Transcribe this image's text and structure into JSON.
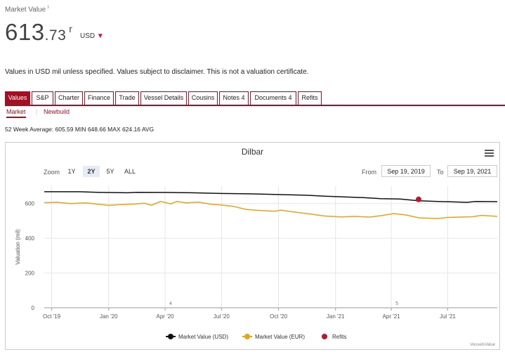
{
  "header": {
    "label": "Market Value",
    "label_sup": "i",
    "value_int": "613",
    "value_dec": ".73",
    "value_suffix": "r",
    "currency": "USD",
    "currency_caret": "▼"
  },
  "disclaimer": "Values in USD mil unless specified. Values subject to disclaimer. This is not a valuation certificate.",
  "tabs": [
    "Values",
    "S&P",
    "Charter",
    "Finance",
    "Trade",
    "Vessel Details",
    "Cousins",
    "Notes 4",
    "Documents 4",
    "Refits"
  ],
  "subtabs": [
    "Market",
    "Newbuild"
  ],
  "week_avg": "52 Week Average: 605.59 MIN 648.66 MAX 624.16 AVG",
  "chart_toolbar": {
    "zoom_label": "Zoom",
    "zoom_options": [
      "1Y",
      "2Y",
      "5Y",
      "ALL"
    ],
    "zoom_selected": "2Y",
    "from_label": "From",
    "from_value": "Sep 19, 2019",
    "to_label": "To",
    "to_value": "Sep 19, 2021"
  },
  "credit": "VesselsValue",
  "colors": {
    "usd": "#111111",
    "eur": "#e8a317",
    "refits": "#c0152f",
    "accent": "#a50f24"
  },
  "chart_data": {
    "type": "line",
    "title": "Dilbar",
    "ylabel": "Valuation (mil)",
    "ylim": [
      0,
      700
    ],
    "yticks": [
      0,
      200,
      400,
      600
    ],
    "x_range": [
      "2019-09-19",
      "2021-09-19"
    ],
    "x_ticks": [
      {
        "date": "2019-10-01",
        "label": "Oct '19"
      },
      {
        "date": "2020-01-01",
        "label": "Jan '20"
      },
      {
        "date": "2020-04-01",
        "label": "Apr '20"
      },
      {
        "date": "2020-07-01",
        "label": "Jul '20"
      },
      {
        "date": "2020-10-01",
        "label": "Oct '20"
      },
      {
        "date": "2021-01-01",
        "label": "Jan '21"
      },
      {
        "date": "2021-04-01",
        "label": "Apr '21"
      },
      {
        "date": "2021-07-01",
        "label": "Jul '21"
      }
    ],
    "annotations": [
      {
        "date": "2020-04-10",
        "label": "4"
      },
      {
        "date": "2021-04-10",
        "label": "5"
      }
    ],
    "grid": true,
    "legend_position": "bottom-center",
    "series": [
      {
        "name": "Market Value (USD)",
        "color": "#111111",
        "points": [
          [
            "2019-09-19",
            668
          ],
          [
            "2019-11-15",
            668
          ],
          [
            "2019-12-15",
            665
          ],
          [
            "2020-02-01",
            662
          ],
          [
            "2020-02-15",
            665
          ],
          [
            "2020-04-01",
            664
          ],
          [
            "2020-05-15",
            662
          ],
          [
            "2020-07-01",
            658
          ],
          [
            "2020-08-15",
            656
          ],
          [
            "2020-10-01",
            652
          ],
          [
            "2020-11-15",
            648
          ],
          [
            "2020-12-15",
            642
          ],
          [
            "2021-01-15",
            638
          ],
          [
            "2021-02-15",
            634
          ],
          [
            "2021-03-15",
            628
          ],
          [
            "2021-04-15",
            626
          ],
          [
            "2021-05-15",
            616
          ],
          [
            "2021-06-15",
            612
          ],
          [
            "2021-07-15",
            609
          ],
          [
            "2021-08-01",
            607
          ],
          [
            "2021-08-15",
            612
          ],
          [
            "2021-09-19",
            611
          ]
        ]
      },
      {
        "name": "Market Value (EUR)",
        "color": "#e8a317",
        "points": [
          [
            "2019-09-19",
            605
          ],
          [
            "2019-10-10",
            607
          ],
          [
            "2019-11-01",
            600
          ],
          [
            "2019-11-25",
            604
          ],
          [
            "2019-12-15",
            596
          ],
          [
            "2020-01-01",
            590
          ],
          [
            "2020-01-20",
            594
          ],
          [
            "2020-02-10",
            597
          ],
          [
            "2020-02-28",
            602
          ],
          [
            "2020-03-10",
            590
          ],
          [
            "2020-03-25",
            612
          ],
          [
            "2020-04-10",
            598
          ],
          [
            "2020-04-20",
            612
          ],
          [
            "2020-05-05",
            604
          ],
          [
            "2020-05-25",
            608
          ],
          [
            "2020-06-15",
            596
          ],
          [
            "2020-07-01",
            592
          ],
          [
            "2020-07-20",
            584
          ],
          [
            "2020-08-10",
            566
          ],
          [
            "2020-09-01",
            560
          ],
          [
            "2020-09-25",
            556
          ],
          [
            "2020-10-05",
            562
          ],
          [
            "2020-10-25",
            552
          ],
          [
            "2020-11-20",
            540
          ],
          [
            "2020-12-15",
            528
          ],
          [
            "2021-01-10",
            523
          ],
          [
            "2021-02-01",
            526
          ],
          [
            "2021-02-25",
            522
          ],
          [
            "2021-03-15",
            530
          ],
          [
            "2021-04-05",
            542
          ],
          [
            "2021-04-25",
            534
          ],
          [
            "2021-05-15",
            518
          ],
          [
            "2021-06-15",
            514
          ],
          [
            "2021-07-01",
            520
          ],
          [
            "2021-07-20",
            522
          ],
          [
            "2021-08-10",
            524
          ],
          [
            "2021-08-25",
            532
          ],
          [
            "2021-09-19",
            526
          ]
        ]
      },
      {
        "name": "Refits",
        "color": "#c0152f",
        "marker": "circle",
        "points": [
          [
            "2021-05-15",
            624
          ]
        ]
      }
    ]
  }
}
